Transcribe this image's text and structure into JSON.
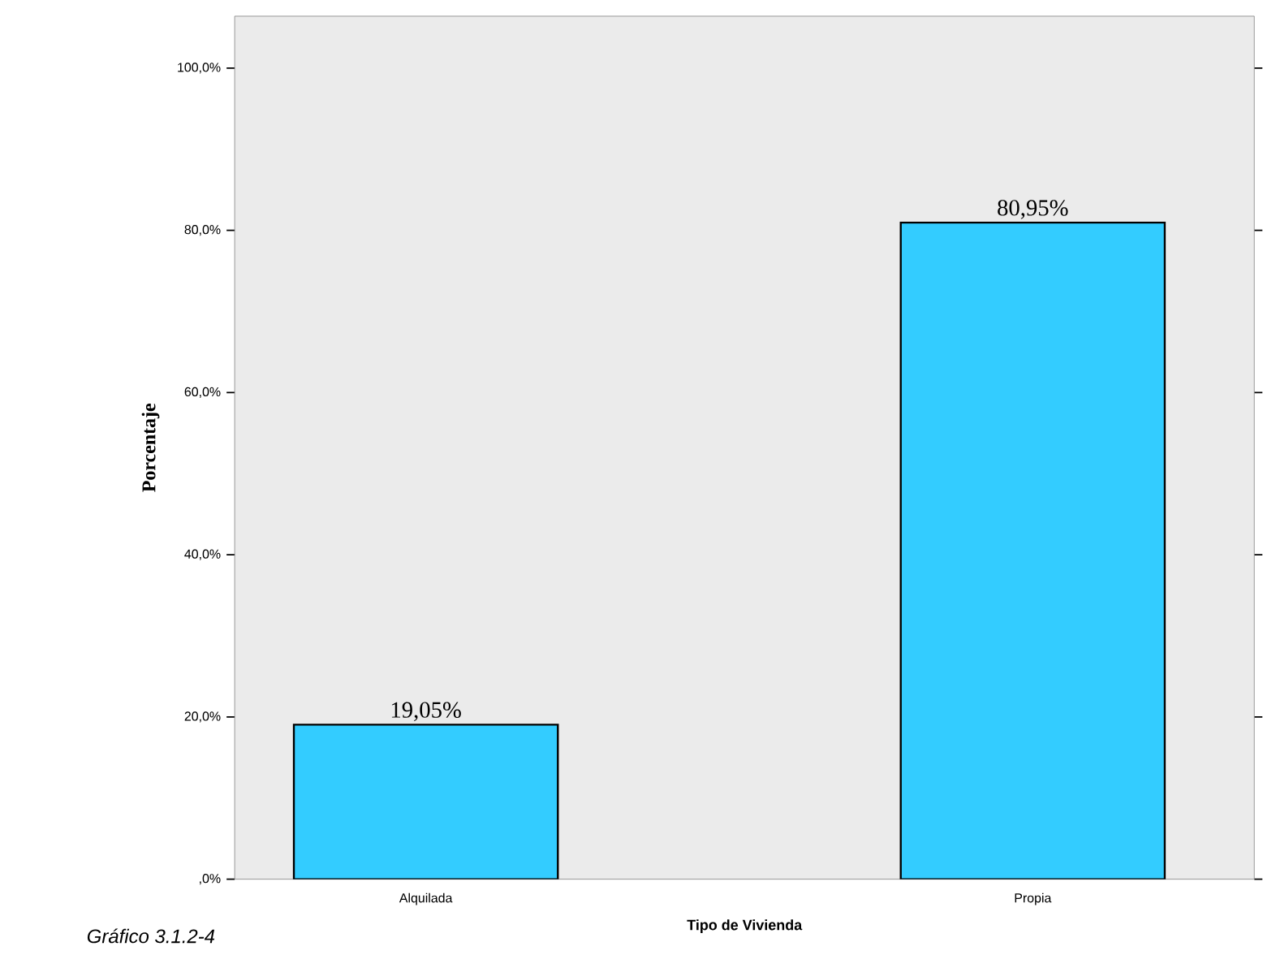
{
  "chart_data": {
    "type": "bar",
    "categories": [
      "Alquilada",
      "Propia"
    ],
    "values": [
      19.05,
      80.95
    ],
    "value_labels": [
      "19,05%",
      "80,95%"
    ],
    "color": "#33ccff",
    "xlabel": "Tipo de Vivienda",
    "ylabel": "Porcentaje",
    "ylim": [
      0,
      106.4
    ],
    "yticks": [
      {
        "value": 0,
        "label": ",0%"
      },
      {
        "value": 20,
        "label": "20,0%"
      },
      {
        "value": 40,
        "label": "40,0%"
      },
      {
        "value": 60,
        "label": "60,0%"
      },
      {
        "value": 80,
        "label": "80,0%"
      },
      {
        "value": 100,
        "label": "100,0%"
      }
    ],
    "annotations": [
      "*Gráfico 3.1.2-4*"
    ]
  }
}
